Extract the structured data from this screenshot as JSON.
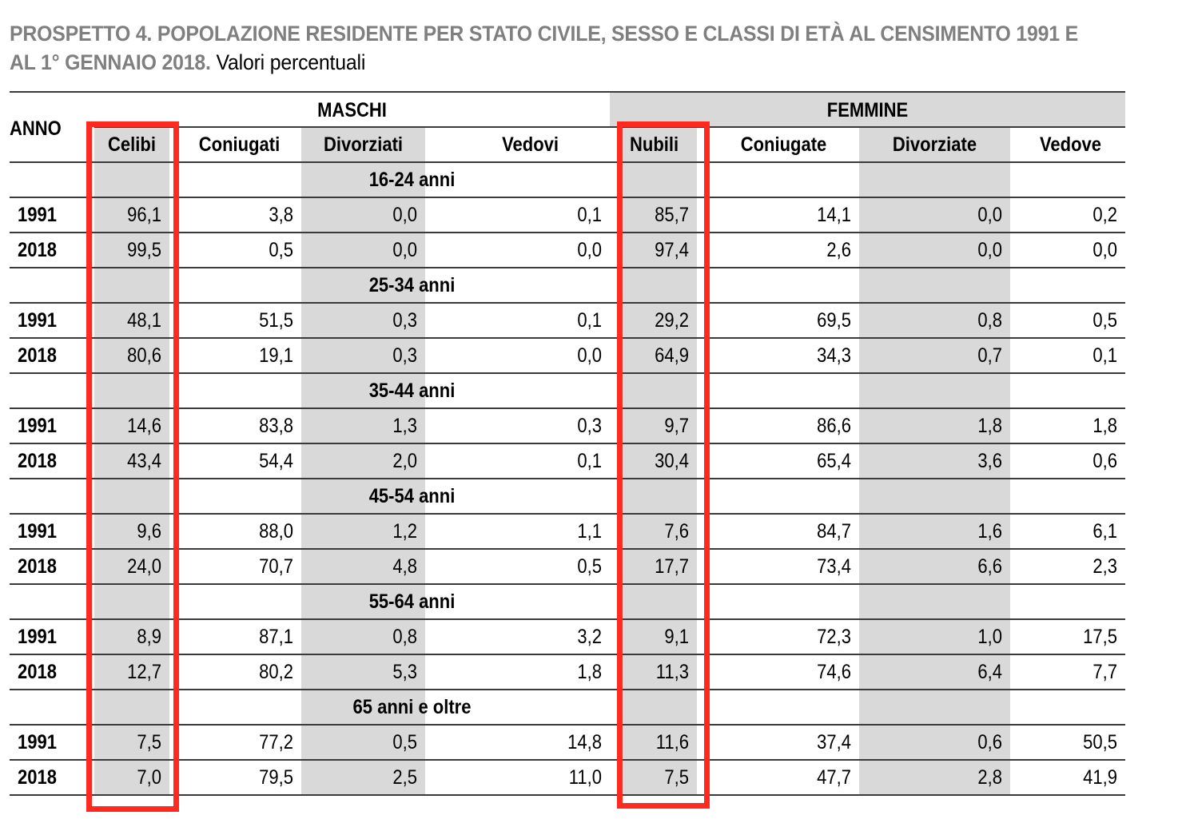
{
  "title": {
    "bold": "PROSPETTO 4. POPOLAZIONE RESIDENTE PER STATO CIVILE, SESSO E CLASSI DI ETÀ AL CENSIMENTO 1991 E AL 1° GENNAIO 2018.",
    "plain": " Valori percentuali"
  },
  "table": {
    "anno_label": "ANNO",
    "groups": {
      "maschi": "MASCHI",
      "femmine": "FEMMINE"
    },
    "columns": [
      "Celibi",
      "Coniugati",
      "Divorziati",
      "Vedovi",
      "Nubili",
      "Coniugate",
      "Divorziate",
      "Vedove"
    ],
    "sections": [
      {
        "age": "16-24 anni",
        "rows": [
          {
            "year": "1991",
            "values": [
              "96,1",
              "3,8",
              "0,0",
              "0,1",
              "85,7",
              "14,1",
              "0,0",
              "0,2"
            ]
          },
          {
            "year": "2018",
            "values": [
              "99,5",
              "0,5",
              "0,0",
              "0,0",
              "97,4",
              "2,6",
              "0,0",
              "0,0"
            ]
          }
        ]
      },
      {
        "age": "25-34 anni",
        "rows": [
          {
            "year": "1991",
            "values": [
              "48,1",
              "51,5",
              "0,3",
              "0,1",
              "29,2",
              "69,5",
              "0,8",
              "0,5"
            ]
          },
          {
            "year": "2018",
            "values": [
              "80,6",
              "19,1",
              "0,3",
              "0,0",
              "64,9",
              "34,3",
              "0,7",
              "0,1"
            ]
          }
        ]
      },
      {
        "age": "35-44 anni",
        "rows": [
          {
            "year": "1991",
            "values": [
              "14,6",
              "83,8",
              "1,3",
              "0,3",
              "9,7",
              "86,6",
              "1,8",
              "1,8"
            ]
          },
          {
            "year": "2018",
            "values": [
              "43,4",
              "54,4",
              "2,0",
              "0,1",
              "30,4",
              "65,4",
              "3,6",
              "0,6"
            ]
          }
        ]
      },
      {
        "age": "45-54 anni",
        "rows": [
          {
            "year": "1991",
            "values": [
              "9,6",
              "88,0",
              "1,2",
              "1,1",
              "7,6",
              "84,7",
              "1,6",
              "6,1"
            ]
          },
          {
            "year": "2018",
            "values": [
              "24,0",
              "70,7",
              "4,8",
              "0,5",
              "17,7",
              "73,4",
              "6,6",
              "2,3"
            ]
          }
        ]
      },
      {
        "age": "55-64 anni",
        "rows": [
          {
            "year": "1991",
            "values": [
              "8,9",
              "87,1",
              "0,8",
              "3,2",
              "9,1",
              "72,3",
              "1,0",
              "17,5"
            ]
          },
          {
            "year": "2018",
            "values": [
              "12,7",
              "80,2",
              "5,3",
              "1,8",
              "11,3",
              "74,6",
              "6,4",
              "7,7"
            ]
          }
        ]
      },
      {
        "age": "65 anni e oltre",
        "rows": [
          {
            "year": "1991",
            "values": [
              "7,5",
              "77,2",
              "0,5",
              "14,8",
              "11,6",
              "37,4",
              "0,6",
              "50,5"
            ]
          },
          {
            "year": "2018",
            "values": [
              "7,0",
              "79,5",
              "2,5",
              "11,0",
              "7,5",
              "47,7",
              "2,8",
              "41,9"
            ]
          }
        ]
      }
    ]
  },
  "highlights": {
    "color": "#ff2a1f",
    "columns": [
      "Celibi",
      "Nubili"
    ]
  },
  "colors": {
    "title_gray": "#7f7f7f",
    "shade": "#d9d9d9",
    "rule": "#3a3a3a"
  }
}
